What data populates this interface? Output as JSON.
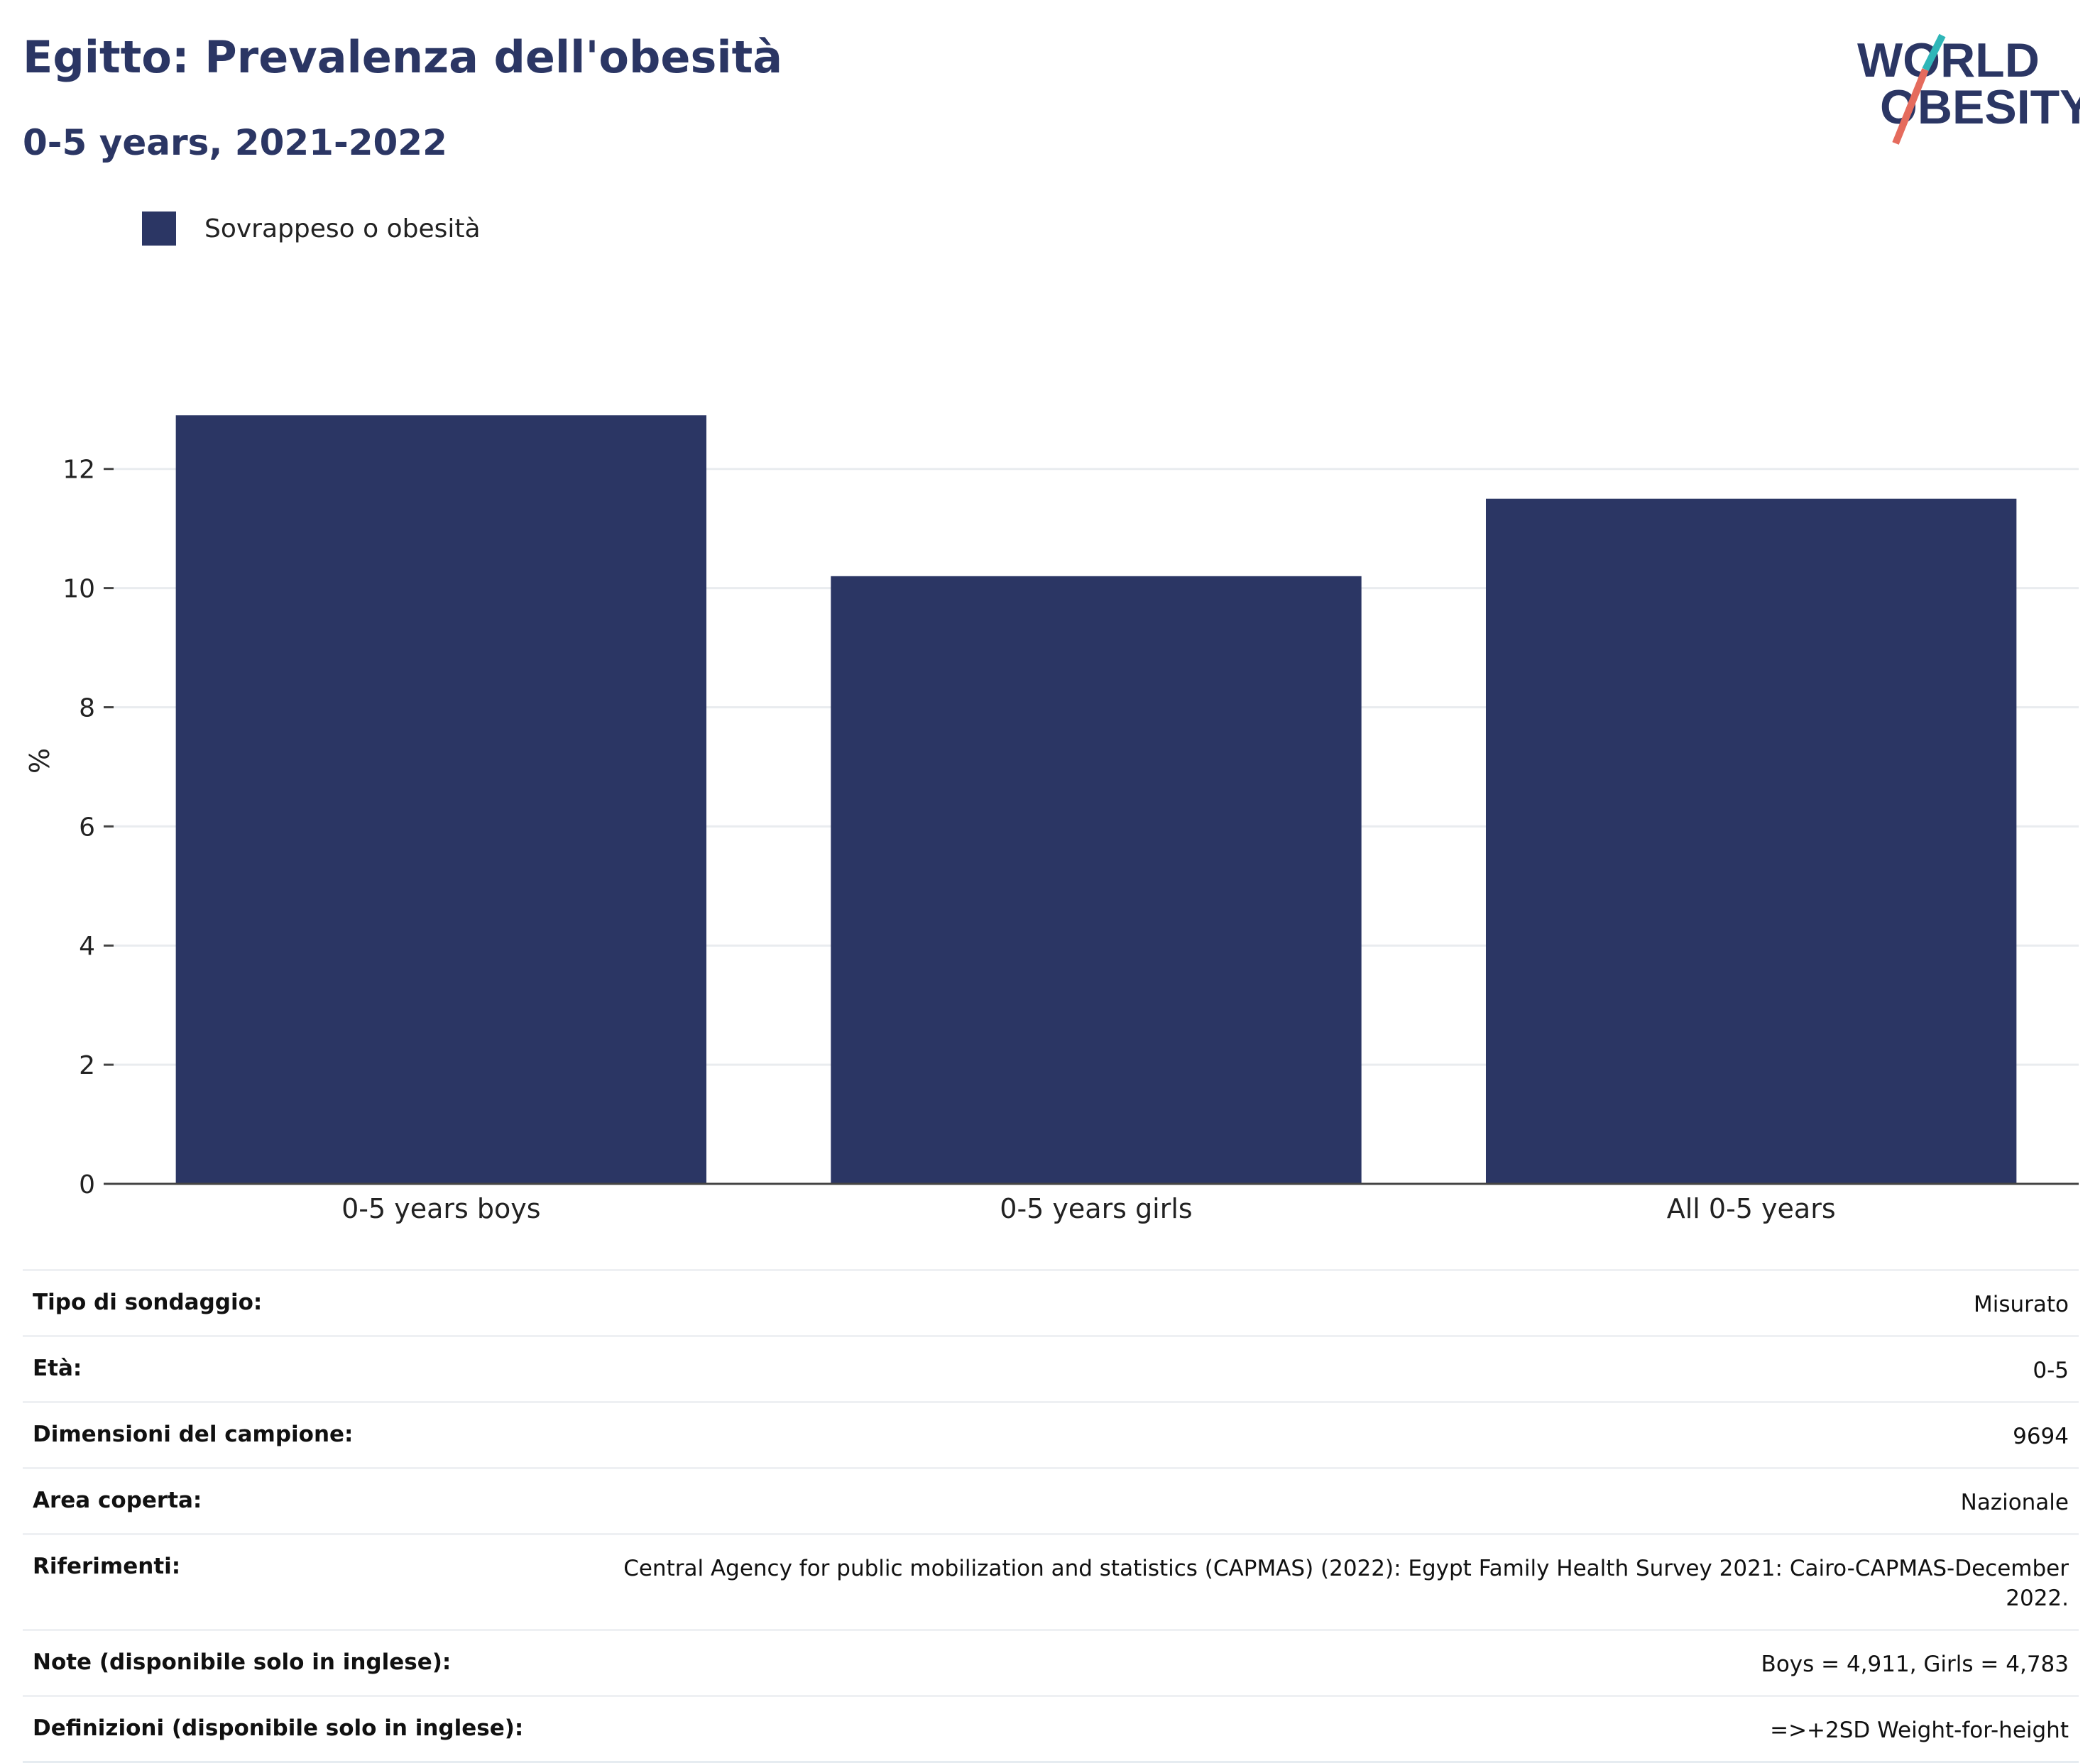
{
  "header": {
    "title": "Egitto: Prevalenza dell'obesità",
    "subtitle": "0-5 years, 2021-2022"
  },
  "logo": {
    "line1": "WORLD",
    "line2": "OBESITY",
    "accent_colors": [
      "#2fb6b8",
      "#e56b5d"
    ]
  },
  "chart_data": {
    "type": "bar",
    "categories": [
      "0-5 years boys",
      "0-5 years girls",
      "All 0-5 years"
    ],
    "series": [
      {
        "name": "Sovrappeso o obesità",
        "values": [
          12.9,
          10.2,
          11.5
        ],
        "color": "#2b3664"
      }
    ],
    "ylabel": "%",
    "ylim": [
      0,
      13.2
    ],
    "yticks": [
      0,
      2,
      4,
      6,
      8,
      10,
      12
    ],
    "grid": true,
    "legend_position": "top-left"
  },
  "info": {
    "rows": [
      {
        "label": "Tipo di sondaggio:",
        "value": "Misurato"
      },
      {
        "label": "Età:",
        "value": "0-5"
      },
      {
        "label": "Dimensioni del campione:",
        "value": "9694"
      },
      {
        "label": "Area coperta:",
        "value": "Nazionale"
      },
      {
        "label": "Riferimenti:",
        "value": "Central Agency for public mobilization and statistics (CAPMAS) (2022): Egypt Family Health Survey 2021: Cairo-CAPMAS-December 2022."
      },
      {
        "label": "Note (disponibile solo in inglese):",
        "value": "Boys = 4,911, Girls = 4,783"
      },
      {
        "label": "Definizioni (disponibile solo in inglese):",
        "value": "=>+2SD Weight-for-height"
      }
    ]
  }
}
